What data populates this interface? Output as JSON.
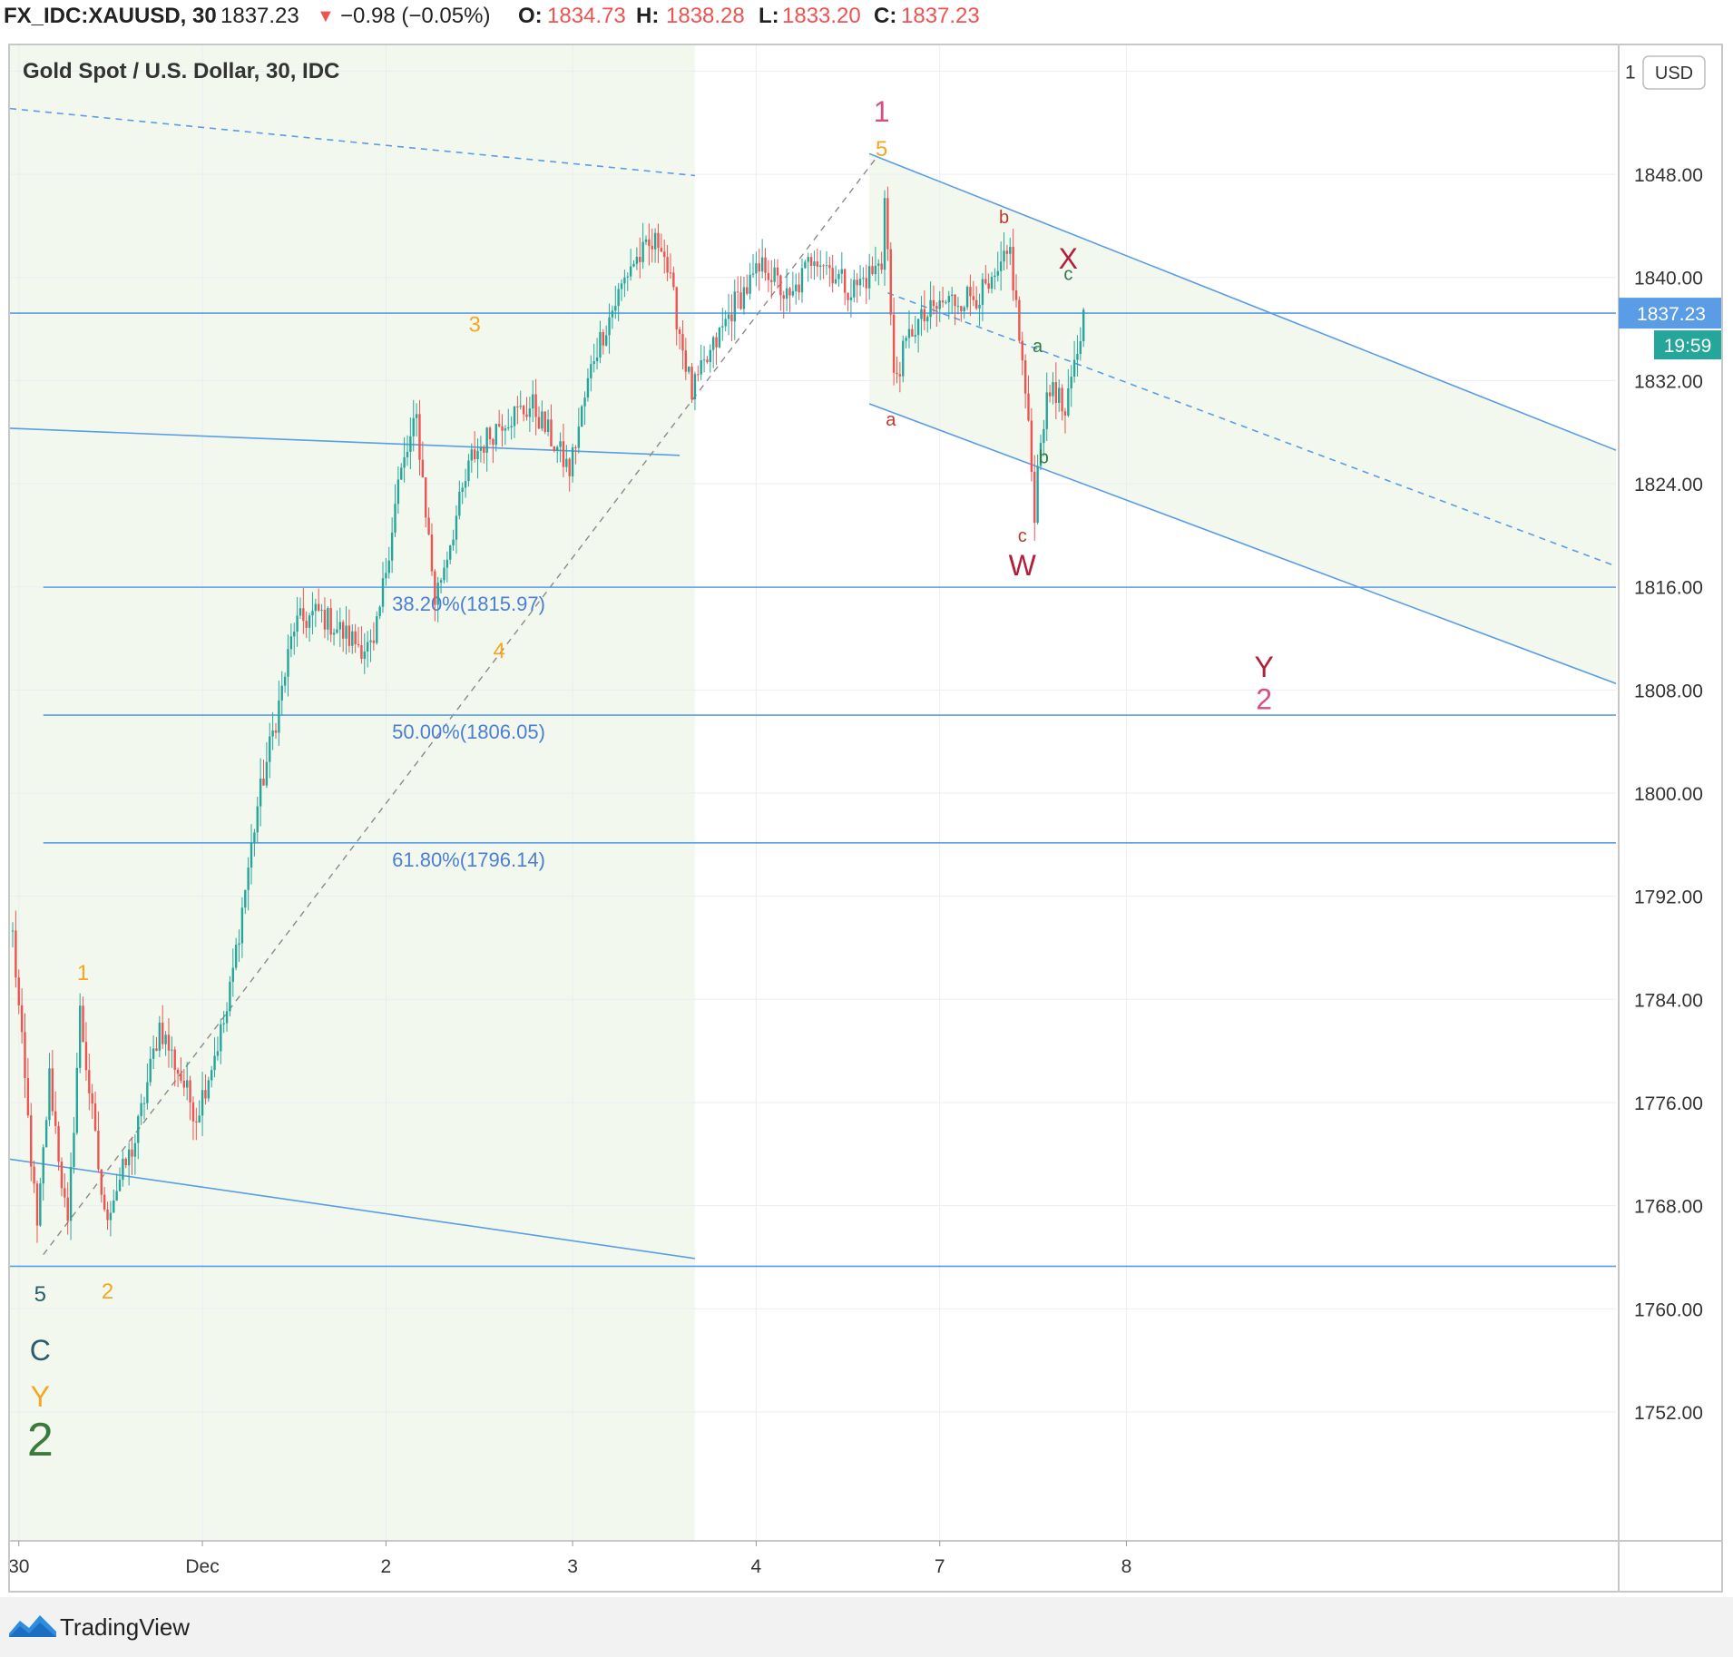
{
  "header": {
    "symbol": "FX_IDC:XAUUSD, 30",
    "price": "1837.23",
    "change_arrow": "▼",
    "change": "−0.98 (−0.05%)",
    "o_label": "O:",
    "o_value": "1834.73",
    "h_label": "H:",
    "h_value": "1838.28",
    "l_label": "L:",
    "l_value": "1833.20",
    "c_label": "C:",
    "c_value": "1837.23"
  },
  "chart_data": {
    "type": "candlestick",
    "title": "Gold Spot / U.S. Dollar, 30, IDC",
    "currency_badge": "USD",
    "last_price": 1837.23,
    "last_price_label": "1837.23",
    "countdown": "19:59",
    "ylim": [
      1742,
      1858
    ],
    "y_ticks": [
      1848,
      1840,
      1832,
      1824,
      1816,
      1808,
      1800,
      1792,
      1784,
      1776,
      1768,
      1760,
      1752
    ],
    "y_tick_labels": [
      "1848.00",
      "1840.00",
      "1832.00",
      "1824.00",
      "1816.00",
      "1808.00",
      "1800.00",
      "1792.00",
      "1784.00",
      "1776.00",
      "1768.00",
      "1760.00",
      "1752.00"
    ],
    "top_tick_label": "1",
    "x_ticks": [
      "30",
      "Dec",
      "2",
      "3",
      "4",
      "7",
      "8"
    ],
    "x_tick_index": [
      2,
      62,
      122,
      183,
      243,
      303,
      364
    ],
    "num_bars": 430,
    "fib_levels": [
      {
        "label": "38.20%(1815.97)",
        "price": 1815.97
      },
      {
        "label": "50.00%(1806.05)",
        "price": 1806.05
      },
      {
        "label": "61.80%(1796.14)",
        "price": 1796.14
      }
    ],
    "horizontal_levels": [
      1837.23,
      1763.3
    ],
    "price_path": [
      [
        0,
        1789
      ],
      [
        8,
        1766
      ],
      [
        12,
        1778
      ],
      [
        18,
        1766
      ],
      [
        22,
        1783
      ],
      [
        30,
        1767
      ],
      [
        40,
        1773
      ],
      [
        48,
        1782
      ],
      [
        60,
        1775
      ],
      [
        70,
        1783
      ],
      [
        80,
        1799
      ],
      [
        88,
        1808
      ],
      [
        92,
        1813
      ],
      [
        100,
        1814
      ],
      [
        110,
        1812
      ],
      [
        118,
        1811
      ],
      [
        126,
        1824
      ],
      [
        132,
        1829
      ],
      [
        138,
        1815
      ],
      [
        150,
        1826
      ],
      [
        160,
        1829
      ],
      [
        170,
        1830
      ],
      [
        182,
        1825
      ],
      [
        190,
        1834
      ],
      [
        202,
        1841
      ],
      [
        212,
        1843
      ],
      [
        222,
        1831
      ],
      [
        228,
        1834
      ],
      [
        236,
        1838
      ],
      [
        246,
        1841
      ],
      [
        254,
        1838
      ],
      [
        262,
        1842
      ],
      [
        274,
        1839
      ],
      [
        284,
        1841
      ],
      [
        282,
        1834
      ],
      [
        285,
        1847
      ],
      [
        288,
        1832
      ],
      [
        294,
        1836
      ],
      [
        304,
        1838
      ],
      [
        320,
        1839
      ],
      [
        326,
        1842
      ],
      [
        331,
        1831
      ],
      [
        334,
        1822
      ],
      [
        336,
        1828
      ],
      [
        340,
        1832
      ],
      [
        344,
        1829
      ],
      [
        350,
        1837
      ]
    ],
    "wave_labels": [
      {
        "text": "1",
        "color": "#d44f82",
        "index": 284,
        "price": 1852.1
      },
      {
        "text": "5",
        "color": "#f5a623",
        "index": 284,
        "price": 1849.4
      },
      {
        "text": "3",
        "color": "#f5a623",
        "index": 151,
        "price": 1835.8
      },
      {
        "text": "4",
        "color": "#f5a623",
        "index": 159,
        "price": 1810.5
      },
      {
        "text": "1",
        "color": "#f5a623",
        "index": 23,
        "price": 1785.5
      },
      {
        "text": "2",
        "color": "#f5a623",
        "index": 31,
        "price": 1760.8
      },
      {
        "text": "5",
        "color": "#2e5b6b",
        "index": 9,
        "price": 1760.6
      },
      {
        "text": "C",
        "color": "#2e5b6b",
        "index": 9,
        "price": 1756
      },
      {
        "text": "Y",
        "color": "#f5a623",
        "index": 9,
        "price": 1752.4
      },
      {
        "text": "2",
        "color": "#3a7a3a",
        "index": 9,
        "price": 1748.6
      },
      {
        "text": "a",
        "color": "#c0392b",
        "index": 287,
        "price": 1828.5
      },
      {
        "text": "b",
        "color": "#c0392b",
        "index": 324,
        "price": 1844.2
      },
      {
        "text": "c",
        "color": "#c0392b",
        "index": 330,
        "price": 1819.5
      },
      {
        "text": "W",
        "color": "#b0203a",
        "index": 330,
        "price": 1816.9
      },
      {
        "text": "X",
        "color": "#b0203a",
        "index": 345,
        "price": 1840.7
      },
      {
        "text": "c",
        "color": "#2e7a4a",
        "index": 345,
        "price": 1839.8
      },
      {
        "text": "a",
        "color": "#2e7a4a",
        "index": 335,
        "price": 1834.2
      },
      {
        "text": "b",
        "color": "#2e7a4a",
        "index": 337,
        "price": 1825.6
      },
      {
        "text": "Y",
        "color": "#b0203a",
        "index": 409,
        "price": 1809
      },
      {
        "text": "2",
        "color": "#d44f82",
        "index": 409,
        "price": 1806.5
      }
    ],
    "colors": {
      "up": "#26a69a",
      "down": "#ef5350",
      "trend_line": "#5b9ce6",
      "fib_text": "#4a7fd4",
      "shaded_region": "#f3f8ee",
      "price_badge": "#5b9ce6",
      "countdown_badge": "#26a69a"
    }
  },
  "footer": {
    "brand": "TradingView"
  }
}
